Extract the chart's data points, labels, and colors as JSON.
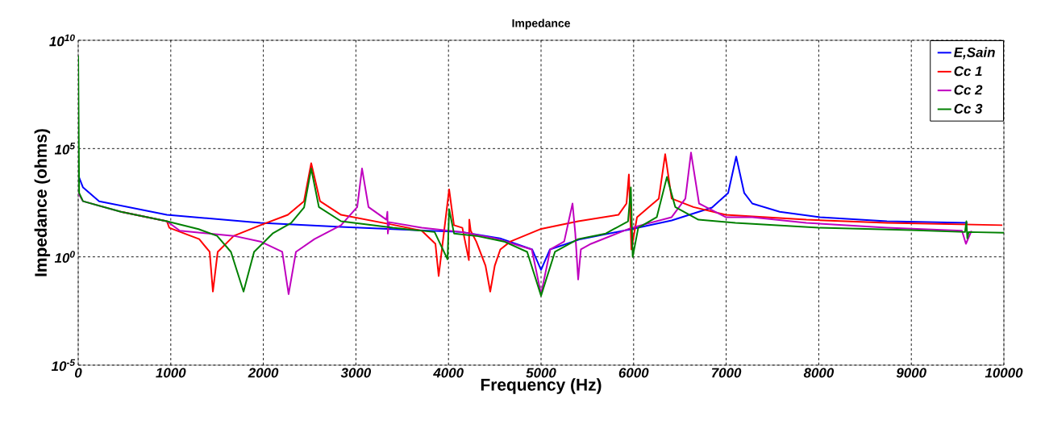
{
  "chart_data": {
    "type": "line",
    "title": "Impedance",
    "xlabel": "Frequency (Hz)",
    "ylabel": "Impedance (ohms)",
    "xlim": [
      0,
      10000
    ],
    "xticks": [
      0,
      1000,
      2000,
      3000,
      4000,
      5000,
      6000,
      7000,
      8000,
      9000,
      10000
    ],
    "ylim": [
      1e-05,
      10000000000
    ],
    "log": "y",
    "yticks": [
      {
        "value": 1e-05,
        "label": "10$^{-5}$"
      },
      {
        "value": 1,
        "label": "10$^{0}$"
      },
      {
        "value": 100000,
        "label": "10$^{5}$"
      },
      {
        "value": 10000000000,
        "label": "10$^{10}$"
      }
    ],
    "grid": true,
    "legend": "top right",
    "marker": "none",
    "line_style": "solid",
    "series": [
      {
        "name": "E,Sain",
        "color": "#0000ff",
        "x": [
          0,
          52,
          226,
          958,
          1969,
          2840,
          4146,
          4556,
          4904,
          5000,
          5096,
          5427,
          5976,
          6411,
          6847,
          7021,
          7108,
          7195,
          7282,
          7578,
          8014,
          8737,
          9608
        ],
        "values": [
          5900,
          1600,
          370,
          87,
          37,
          24,
          14,
          7.2,
          2.2,
          0.25,
          2.2,
          6.6,
          19,
          48,
          190,
          890,
          43000,
          890,
          290,
          120,
          68,
          44,
          37
        ]
      },
      {
        "name": "Cc 1",
        "color": "#ff0000",
        "x": [
          462,
          958,
          984,
          1307,
          1420,
          1455,
          1507,
          1681,
          1969,
          2265,
          2439,
          2517,
          2613,
          2840,
          3423,
          3711,
          3859,
          3894,
          4007,
          4059,
          4150,
          4220,
          4225,
          4240,
          4300,
          4400,
          4451,
          4500,
          4560,
          4669,
          4991,
          5401,
          5836,
          5923,
          5949,
          5976,
          6037,
          6272,
          6341,
          6411,
          6646,
          6995,
          7430,
          7866,
          8737,
          9983
        ],
        "values": [
          120,
          44,
          22,
          6.6,
          1.7,
          0.025,
          1.7,
          9.3,
          29,
          87,
          370,
          21000,
          370,
          87,
          29,
          16,
          4.0,
          0.13,
          1300,
          29,
          22,
          0.71,
          52,
          16,
          5.1,
          0.39,
          0.025,
          0.39,
          2.2,
          5.1,
          19,
          44,
          87,
          290,
          6400,
          2.2,
          68,
          490,
          55000,
          490,
          200,
          87,
          68,
          52,
          37,
          29
        ]
      },
      {
        "name": "Cc 2",
        "color": "#bf00bf",
        "x": [
          0,
          52,
          462,
          958,
          1098,
          1681,
          1969,
          2204,
          2273,
          2352,
          2552,
          2840,
          3014,
          3066,
          3136,
          3330,
          3340,
          3345,
          3360,
          3711,
          4146,
          4500,
          4900,
          5000,
          5100,
          5250,
          5340,
          5370,
          5401,
          5430,
          5540,
          5976,
          6411,
          6559,
          6620,
          6707,
          6995,
          7282,
          7866,
          8737,
          9547,
          9590,
          9650
        ],
        "values": [
          890,
          370,
          120,
          44,
          16,
          9.3,
          5.1,
          1.7,
          0.019,
          1.7,
          6.6,
          29,
          200,
          12000,
          200,
          52,
          120,
          12,
          40,
          22,
          14,
          7.2,
          2.2,
          0.019,
          2.2,
          5.1,
          290,
          12,
          0.09,
          2.2,
          4.0,
          22,
          68,
          490,
          65000,
          290,
          68,
          68,
          37,
          22,
          16,
          4.0,
          16
        ]
      },
      {
        "name": "Cc 3",
        "color": "#008000",
        "x": [
          0,
          10,
          52,
          462,
          958,
          1300,
          1500,
          1650,
          1786,
          1900,
          2100,
          2300,
          2440,
          2517,
          2600,
          2840,
          3400,
          3850,
          3990,
          4007,
          4060,
          4300,
          4600,
          4850,
          5000,
          5150,
          5400,
          5700,
          5940,
          5970,
          5990,
          6050,
          6250,
          6360,
          6450,
          6700,
          7100,
          8000,
          9000,
          9580,
          9595,
          9605,
          9620,
          10000
        ],
        "values": [
          1900000000,
          890,
          370,
          120,
          44,
          19,
          9.3,
          1.7,
          0.025,
          1.7,
          12,
          37,
          190,
          12000,
          200,
          44,
          22,
          14,
          0.77,
          160,
          12,
          9.3,
          5.1,
          1.7,
          0.016,
          1.7,
          6.6,
          12,
          44,
          1600,
          1.0,
          22,
          68,
          4900,
          200,
          52,
          37,
          22,
          17,
          14,
          44,
          7.2,
          14,
          13
        ]
      }
    ]
  }
}
